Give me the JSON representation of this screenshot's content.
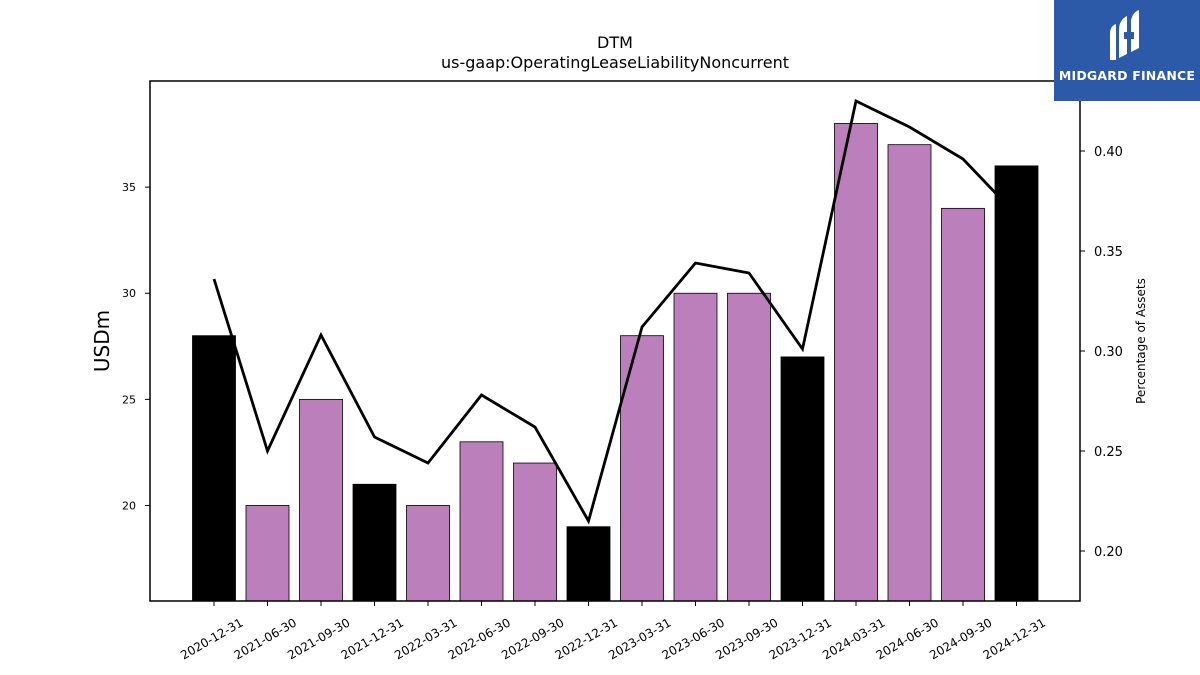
{
  "logo": {
    "text": "MIDGARD FINANCE",
    "bg_color": "#2d5aa8"
  },
  "chart_data": {
    "type": "bar",
    "title": "DTM",
    "subtitle": "us-gaap:OperatingLeaseLiabilityNoncurrent",
    "ylabel": "USDm",
    "y2label": "Percentage of Assets",
    "ylim": [
      15.5,
      40.0
    ],
    "y2lim": [
      0.175,
      0.435
    ],
    "yticks": [
      20,
      25,
      30,
      35
    ],
    "y2ticks": [
      0.2,
      0.25,
      0.3,
      0.35,
      0.4
    ],
    "y2tick_labels": [
      "0.20",
      "0.25",
      "0.30",
      "0.35",
      "0.40"
    ],
    "categories": [
      "2020-12-31",
      "2021-06-30",
      "2021-09-30",
      "2021-12-31",
      "2022-03-31",
      "2022-06-30",
      "2022-09-30",
      "2022-12-31",
      "2023-03-31",
      "2023-06-30",
      "2023-09-30",
      "2023-12-31",
      "2024-03-31",
      "2024-06-30",
      "2024-09-30",
      "2024-12-31"
    ],
    "series": [
      {
        "type": "bar",
        "axis": "left",
        "values": [
          28,
          20,
          25,
          21,
          20,
          23,
          22,
          19,
          28,
          30,
          30,
          27,
          38,
          37,
          34,
          36
        ],
        "colors": [
          "#000000",
          "#bb80bc",
          "#bb80bc",
          "#000000",
          "#bb80bc",
          "#bb80bc",
          "#bb80bc",
          "#000000",
          "#bb80bc",
          "#bb80bc",
          "#bb80bc",
          "#000000",
          "#bb80bc",
          "#bb80bc",
          "#bb80bc",
          "#000000"
        ]
      },
      {
        "type": "line",
        "axis": "right",
        "color": "#000000",
        "values": [
          0.336,
          0.25,
          0.308,
          0.257,
          0.244,
          0.278,
          0.262,
          0.215,
          0.312,
          0.344,
          0.339,
          0.301,
          0.425,
          0.412,
          0.396,
          0.368
        ]
      }
    ],
    "grid": false,
    "legend": "none"
  }
}
